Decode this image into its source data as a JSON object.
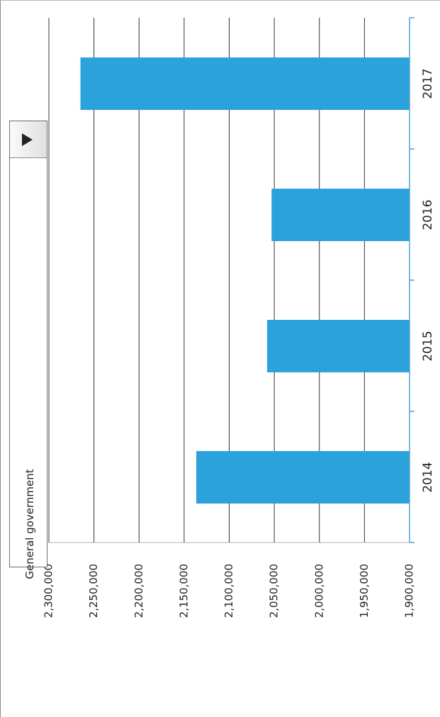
{
  "dropdown": {
    "selected": "General government"
  },
  "colors": {
    "bar": "#2ba2dc",
    "grid": "#333333",
    "axis": "#4aa3d6"
  },
  "chart_data": {
    "type": "bar",
    "orientation": "vertical",
    "categories": [
      "2014",
      "2015",
      "2016",
      "2017"
    ],
    "values": [
      2136500,
      2058000,
      2053000,
      2265000
    ],
    "ylim": [
      1900000,
      2300000
    ],
    "yticks": [
      1900000,
      1950000,
      2000000,
      2050000,
      2100000,
      2150000,
      2200000,
      2250000,
      2300000
    ],
    "ytick_labels": [
      "1,900,000",
      "1,950,000",
      "2,000,000",
      "2,050,000",
      "2,100,000",
      "2,150,000",
      "2,200,000",
      "2,250,000",
      "2,300,000"
    ],
    "grid": true,
    "legend": "none"
  }
}
